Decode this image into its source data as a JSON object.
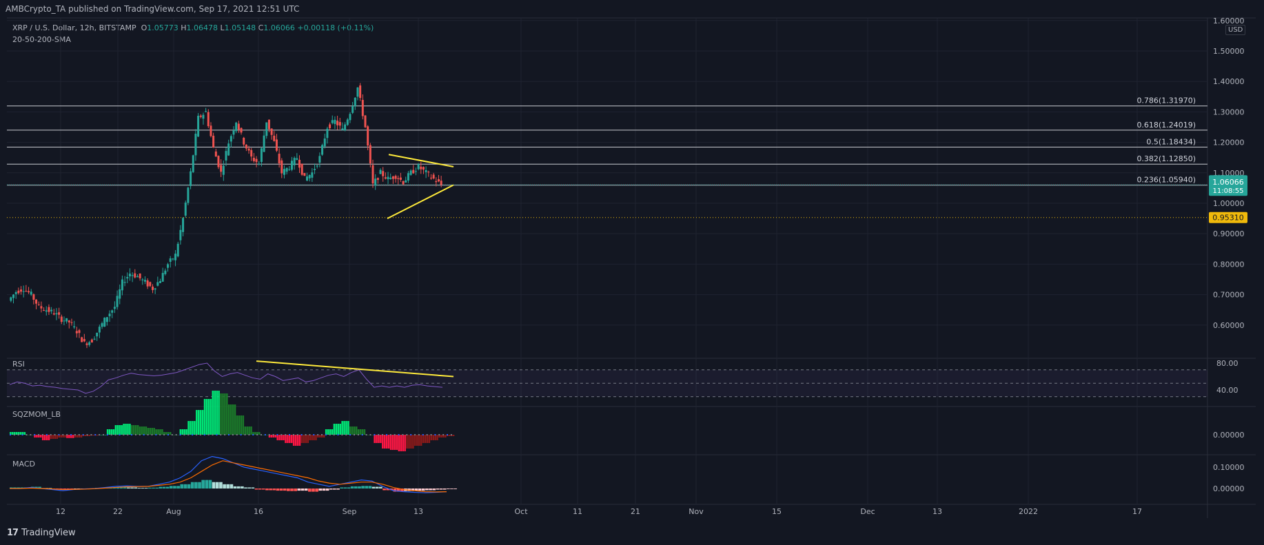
{
  "header": {
    "published": "AMBCrypto_TA published on TradingView.com, Sep 17, 2021 12:51 UTC"
  },
  "legend": {
    "symbol": "XRP / U.S. Dollar, 12h, BITSTAMP",
    "o_label": "O",
    "o": "1.05773",
    "h_label": "H",
    "h": "1.06478",
    "l_label": "L",
    "l": "1.05148",
    "c_label": "C",
    "c": "1.06066",
    "change": "+0.00118 (+0.11%)",
    "indicator": "20-50-200-SMA"
  },
  "panes": {
    "rsi": "RSI",
    "sqz": "SQZMOM_LB",
    "macd": "MACD"
  },
  "currency": "USD",
  "brand": {
    "logo": "17",
    "name": "TradingView"
  },
  "colors": {
    "up": "#26a69a",
    "down": "#ef5350",
    "trendline": "#ffeb3b",
    "rsi": "#7e57c2",
    "macd": "#2962ff",
    "signal": "#ff6d00",
    "background": "#131722"
  },
  "chart_data": {
    "type": "candlestick",
    "price_axis": {
      "ticks": [
        0.6,
        0.7,
        0.8,
        0.9,
        1.0,
        1.1,
        1.2,
        1.3,
        1.4,
        1.5,
        1.6
      ],
      "tick_labels": [
        "0.60000",
        "0.70000",
        "0.80000",
        "0.90000",
        "1.00000",
        "1.10000",
        "1.20000",
        "1.30000",
        "1.40000",
        "1.50000",
        "1.60000"
      ]
    },
    "x_axis_labels": [
      "12",
      "22",
      "Aug",
      "16",
      "Sep",
      "13",
      "Oct",
      "11",
      "21",
      "Nov",
      "15",
      "Dec",
      "13",
      "2022",
      "17"
    ],
    "last_price": {
      "value": 1.06066,
      "label": "1.06066",
      "countdown": "11:08:55"
    },
    "support_price": {
      "value": 0.9531,
      "label": "0.95310"
    },
    "fib_levels": [
      {
        "ratio": "0.786",
        "value": 1.3197,
        "label": "0.786(1.31970)"
      },
      {
        "ratio": "0.618",
        "value": 1.24019,
        "label": "0.618(1.24019)"
      },
      {
        "ratio": "0.5",
        "value": 1.18434,
        "label": "0.5(1.18434)"
      },
      {
        "ratio": "0.382",
        "value": 1.1285,
        "label": "0.382(1.12850)"
      },
      {
        "ratio": "0.236",
        "value": 1.0594,
        "label": "0.236(1.05940)"
      }
    ],
    "price_path": [
      0.68,
      0.71,
      0.72,
      0.7,
      0.66,
      0.65,
      0.64,
      0.62,
      0.61,
      0.58,
      0.54,
      0.55,
      0.59,
      0.63,
      0.66,
      0.74,
      0.77,
      0.76,
      0.74,
      0.72,
      0.75,
      0.8,
      0.83,
      0.95,
      1.1,
      1.28,
      1.3,
      1.18,
      1.1,
      1.2,
      1.27,
      1.2,
      1.15,
      1.13,
      1.27,
      1.2,
      1.1,
      1.12,
      1.15,
      1.08,
      1.1,
      1.15,
      1.25,
      1.27,
      1.24,
      1.3,
      1.38,
      1.25,
      1.06,
      1.1,
      1.08,
      1.09,
      1.07,
      1.1,
      1.12,
      1.1,
      1.08,
      1.06066
    ],
    "triangle": {
      "upper": [
        [
          1.16,
          1.12
        ]
      ],
      "lower": [
        [
          0.95,
          1.06
        ]
      ]
    },
    "rsi": {
      "ticks": [
        40,
        80
      ],
      "tick_labels": [
        "40.00",
        "80.00"
      ],
      "values": [
        48,
        52,
        50,
        46,
        47,
        45,
        44,
        42,
        41,
        40,
        35,
        38,
        45,
        55,
        58,
        62,
        65,
        63,
        62,
        61,
        62,
        64,
        66,
        70,
        74,
        78,
        80,
        68,
        60,
        64,
        66,
        62,
        58,
        56,
        64,
        60,
        54,
        56,
        58,
        52,
        54,
        58,
        62,
        64,
        60,
        66,
        70,
        56,
        44,
        46,
        44,
        46,
        44,
        47,
        48,
        46,
        45,
        44
      ],
      "trendline": [
        83,
        60
      ]
    },
    "sqzmom": {
      "ticks": [
        0
      ],
      "tick_labels": [
        "0.00000"
      ],
      "values": [
        0.01,
        0.01,
        0.0,
        -0.01,
        -0.02,
        -0.015,
        -0.01,
        -0.012,
        -0.01,
        -0.005,
        -0.003,
        0.0,
        0.02,
        0.035,
        0.04,
        0.035,
        0.03,
        0.025,
        0.02,
        0.01,
        0.0,
        0.02,
        0.05,
        0.09,
        0.13,
        0.16,
        0.15,
        0.11,
        0.07,
        0.03,
        0.01,
        0.0,
        -0.01,
        -0.02,
        -0.03,
        -0.04,
        -0.03,
        -0.02,
        -0.01,
        0.02,
        0.04,
        0.05,
        0.03,
        0.02,
        0.0,
        -0.03,
        -0.05,
        -0.055,
        -0.06,
        -0.05,
        -0.04,
        -0.03,
        -0.02,
        -0.01,
        -0.005
      ]
    },
    "macd": {
      "ticks": [
        0,
        0.1
      ],
      "tick_labels": [
        "0.00000",
        "0.10000"
      ],
      "macd": [
        0.0,
        0.0,
        0.005,
        0.0,
        -0.005,
        -0.01,
        -0.005,
        -0.002,
        0.0,
        0.005,
        0.01,
        0.012,
        0.01,
        0.01,
        0.02,
        0.03,
        0.05,
        0.08,
        0.13,
        0.15,
        0.14,
        0.12,
        0.1,
        0.09,
        0.08,
        0.07,
        0.06,
        0.05,
        0.03,
        0.02,
        0.01,
        0.02,
        0.03,
        0.04,
        0.035,
        0.01,
        -0.01,
        -0.015,
        -0.018,
        -0.02,
        -0.018,
        -0.015
      ],
      "signal": [
        0.0,
        0.0,
        0.002,
        0.0,
        -0.002,
        -0.005,
        -0.004,
        -0.003,
        -0.001,
        0.002,
        0.005,
        0.008,
        0.009,
        0.01,
        0.015,
        0.02,
        0.03,
        0.05,
        0.08,
        0.11,
        0.13,
        0.12,
        0.11,
        0.1,
        0.09,
        0.08,
        0.07,
        0.06,
        0.05,
        0.035,
        0.025,
        0.02,
        0.025,
        0.03,
        0.03,
        0.02,
        0.005,
        -0.005,
        -0.01,
        -0.015,
        -0.016,
        -0.015
      ],
      "hist": [
        0.005,
        0.005,
        0.008,
        0.002,
        -0.004,
        -0.006,
        -0.003,
        0.0,
        0.003,
        0.005,
        0.006,
        0.005,
        0.003,
        0.004,
        0.008,
        0.012,
        0.02,
        0.03,
        0.04,
        0.03,
        0.02,
        0.01,
        0.005,
        -0.005,
        -0.008,
        -0.01,
        -0.012,
        -0.01,
        -0.015,
        -0.01,
        -0.005,
        0.005,
        0.01,
        0.012,
        0.008,
        -0.008,
        -0.015,
        -0.012,
        -0.01,
        -0.008,
        -0.005,
        -0.003
      ]
    }
  }
}
